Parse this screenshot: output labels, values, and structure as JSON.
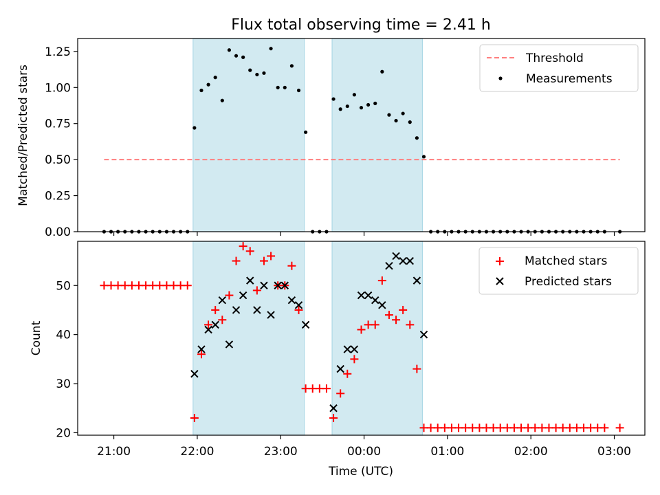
{
  "figure": {
    "title": "Flux total observing time = 2.41 h",
    "xlabel": "Time (UTC)",
    "x_tick_labels": [
      "21:00",
      "22:00",
      "23:00",
      "00:00",
      "01:00",
      "02:00",
      "03:00"
    ]
  },
  "colors": {
    "threshold": "#ff7f7f",
    "measurements": "#000000",
    "matched": "#ff0000",
    "predicted": "#000000",
    "shade": "#add8e6"
  },
  "chart_data": [
    {
      "type": "scatter",
      "panel": "top",
      "ylabel": "Matched/Predicted stars",
      "ylim": [
        0,
        1.34
      ],
      "yticks": [
        0,
        0.25,
        0.5,
        0.75,
        1.0,
        1.25
      ],
      "ytick_labels": [
        "0.00",
        "0.25",
        "0.50",
        "0.75",
        "1.00",
        "1.25"
      ],
      "xlim": [
        "20:34",
        "03:22"
      ],
      "shaded_intervals": [
        [
          "21:57",
          "23:17"
        ],
        [
          "23:37",
          "00:42"
        ]
      ],
      "legend": {
        "position": "top-right",
        "entries": [
          "Threshold",
          "Measurements"
        ]
      },
      "series": [
        {
          "name": "Threshold",
          "kind": "dashed-line",
          "x": [
            "20:53",
            "03:04"
          ],
          "y": [
            0.5,
            0.5
          ]
        },
        {
          "name": "Measurements",
          "kind": "points",
          "x": [
            "20:53",
            "20:58",
            "21:03",
            "21:08",
            "21:13",
            "21:18",
            "21:23",
            "21:28",
            "21:33",
            "21:38",
            "21:43",
            "21:48",
            "21:53",
            "21:58",
            "22:03",
            "22:08",
            "22:13",
            "22:18",
            "22:23",
            "22:28",
            "22:33",
            "22:38",
            "22:43",
            "22:48",
            "22:53",
            "22:58",
            "23:03",
            "23:08",
            "23:13",
            "23:18",
            "23:23",
            "23:28",
            "23:33",
            "23:38",
            "23:43",
            "23:48",
            "23:53",
            "23:58",
            "00:03",
            "00:08",
            "00:13",
            "00:18",
            "00:23",
            "00:28",
            "00:33",
            "00:38",
            "00:43",
            "00:48",
            "00:53",
            "00:58",
            "01:03",
            "01:08",
            "01:13",
            "01:18",
            "01:23",
            "01:28",
            "01:33",
            "01:38",
            "01:43",
            "01:48",
            "01:53",
            "01:58",
            "02:03",
            "02:08",
            "02:13",
            "02:18",
            "02:23",
            "02:28",
            "02:33",
            "02:38",
            "02:43",
            "02:48",
            "02:53",
            "03:04"
          ],
          "y": [
            0,
            0,
            0,
            0,
            0,
            0,
            0,
            0,
            0,
            0,
            0,
            0,
            0,
            0.72,
            0.98,
            1.02,
            1.07,
            0.91,
            1.26,
            1.22,
            1.21,
            1.12,
            1.09,
            1.1,
            1.27,
            1.0,
            1.0,
            1.15,
            0.98,
            0.69,
            0,
            0,
            0,
            0.92,
            0.85,
            0.87,
            0.95,
            0.86,
            0.88,
            0.89,
            1.11,
            0.81,
            0.77,
            0.82,
            0.76,
            0.65,
            0.52,
            0,
            0,
            0,
            0,
            0,
            0,
            0,
            0,
            0,
            0,
            0,
            0,
            0,
            0,
            0,
            0,
            0,
            0,
            0,
            0,
            0,
            0,
            0,
            0,
            0,
            0,
            0
          ]
        }
      ]
    },
    {
      "type": "scatter",
      "panel": "bottom",
      "ylabel": "Count",
      "ylim": [
        19.5,
        59
      ],
      "yticks": [
        20,
        30,
        40,
        50
      ],
      "ytick_labels": [
        "20",
        "30",
        "40",
        "50"
      ],
      "xlim": [
        "20:34",
        "03:22"
      ],
      "shaded_intervals": [
        [
          "21:57",
          "23:17"
        ],
        [
          "23:37",
          "00:42"
        ]
      ],
      "legend": {
        "position": "top-right",
        "entries": [
          "Matched stars",
          "Predicted stars"
        ]
      },
      "series": [
        {
          "name": "Matched stars",
          "marker": "plus",
          "x": [
            "20:53",
            "20:58",
            "21:03",
            "21:08",
            "21:13",
            "21:18",
            "21:23",
            "21:28",
            "21:33",
            "21:38",
            "21:43",
            "21:48",
            "21:53",
            "21:58",
            "22:03",
            "22:08",
            "22:13",
            "22:18",
            "22:23",
            "22:28",
            "22:33",
            "22:38",
            "22:43",
            "22:48",
            "22:53",
            "22:58",
            "23:03",
            "23:08",
            "23:13",
            "23:18",
            "23:23",
            "23:28",
            "23:33",
            "23:38",
            "23:43",
            "23:48",
            "23:53",
            "23:58",
            "00:03",
            "00:08",
            "00:13",
            "00:18",
            "00:23",
            "00:28",
            "00:33",
            "00:38",
            "00:43",
            "00:48",
            "00:53",
            "00:58",
            "01:03",
            "01:08",
            "01:13",
            "01:18",
            "01:23",
            "01:28",
            "01:33",
            "01:38",
            "01:43",
            "01:48",
            "01:53",
            "01:58",
            "02:03",
            "02:08",
            "02:13",
            "02:18",
            "02:23",
            "02:28",
            "02:33",
            "02:38",
            "02:43",
            "02:48",
            "02:53",
            "03:04"
          ],
          "y": [
            50,
            50,
            50,
            50,
            50,
            50,
            50,
            50,
            50,
            50,
            50,
            50,
            50,
            23,
            36,
            42,
            45,
            43,
            48,
            55,
            58,
            57,
            49,
            55,
            56,
            50,
            50,
            54,
            45,
            29,
            29,
            29,
            29,
            23,
            28,
            32,
            35,
            41,
            42,
            42,
            51,
            44,
            43,
            45,
            42,
            33,
            21,
            21,
            21,
            21,
            21,
            21,
            21,
            21,
            21,
            21,
            21,
            21,
            21,
            21,
            21,
            21,
            21,
            21,
            21,
            21,
            21,
            21,
            21,
            21,
            21,
            21,
            21,
            21
          ]
        },
        {
          "name": "Predicted stars",
          "marker": "x",
          "x": [
            "21:58",
            "22:03",
            "22:08",
            "22:13",
            "22:18",
            "22:23",
            "22:28",
            "22:33",
            "22:38",
            "22:43",
            "22:48",
            "22:53",
            "22:58",
            "23:03",
            "23:08",
            "23:13",
            "23:18",
            "23:38",
            "23:43",
            "23:48",
            "23:53",
            "23:58",
            "00:03",
            "00:08",
            "00:13",
            "00:18",
            "00:23",
            "00:28",
            "00:33",
            "00:38",
            "00:43"
          ],
          "y": [
            32,
            37,
            41,
            42,
            47,
            38,
            45,
            48,
            51,
            45,
            50,
            44,
            50,
            50,
            47,
            46,
            42,
            25,
            33,
            37,
            37,
            48,
            48,
            47,
            46,
            54,
            56,
            55,
            55,
            51,
            40
          ]
        }
      ]
    }
  ]
}
